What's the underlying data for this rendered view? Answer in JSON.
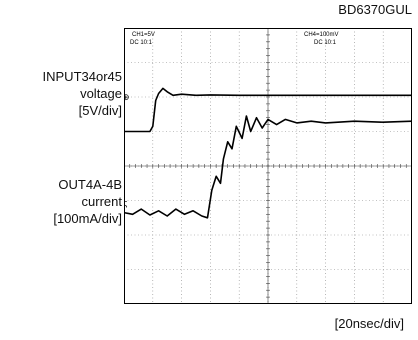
{
  "part_number": "BD6370GUL",
  "channel_labels": {
    "ch1": [
      "CH1=5V",
      "DC 10:1"
    ],
    "ch4": [
      "CH4=100mV",
      "DC 10:1"
    ]
  },
  "chart_data": {
    "type": "line",
    "x_divisions": 10,
    "y_divisions": 8,
    "series": [
      {
        "name": "INPUT34or45 voltage",
        "axis_label": [
          "INPUT34or45",
          "voltage",
          "[5V/div]"
        ],
        "y_scale": "5V/div",
        "points_div": [
          [
            0,
            1.0
          ],
          [
            0.9,
            1.0
          ],
          [
            1.0,
            1.15
          ],
          [
            1.1,
            1.9
          ],
          [
            1.2,
            2.1
          ],
          [
            1.35,
            2.25
          ],
          [
            1.5,
            2.15
          ],
          [
            1.7,
            2.05
          ],
          [
            2.0,
            2.08
          ],
          [
            2.5,
            2.05
          ],
          [
            3.0,
            2.06
          ],
          [
            4.0,
            2.05
          ],
          [
            5.0,
            2.05
          ],
          [
            6.0,
            2.05
          ],
          [
            7.0,
            2.05
          ],
          [
            8.0,
            2.05
          ],
          [
            9.0,
            2.05
          ],
          [
            10.0,
            2.05
          ]
        ]
      },
      {
        "name": "OUT4A-4B current",
        "axis_label": [
          "OUT4A-4B",
          "current",
          "[100mA/div]"
        ],
        "y_scale": "100mA/div",
        "points_div": [
          [
            0,
            -1.35
          ],
          [
            0.3,
            -1.4
          ],
          [
            0.6,
            -1.25
          ],
          [
            0.9,
            -1.42
          ],
          [
            1.2,
            -1.3
          ],
          [
            1.5,
            -1.45
          ],
          [
            1.8,
            -1.25
          ],
          [
            2.1,
            -1.4
          ],
          [
            2.4,
            -1.3
          ],
          [
            2.7,
            -1.45
          ],
          [
            2.9,
            -1.5
          ],
          [
            3.05,
            -0.7
          ],
          [
            3.2,
            -0.3
          ],
          [
            3.35,
            -0.5
          ],
          [
            3.45,
            0.2
          ],
          [
            3.6,
            0.7
          ],
          [
            3.75,
            0.5
          ],
          [
            3.9,
            1.15
          ],
          [
            4.1,
            0.8
          ],
          [
            4.25,
            1.45
          ],
          [
            4.4,
            1.0
          ],
          [
            4.6,
            1.4
          ],
          [
            4.8,
            1.1
          ],
          [
            5.0,
            1.35
          ],
          [
            5.3,
            1.2
          ],
          [
            5.6,
            1.35
          ],
          [
            6.0,
            1.25
          ],
          [
            6.5,
            1.3
          ],
          [
            7.0,
            1.25
          ],
          [
            8.0,
            1.3
          ],
          [
            9.0,
            1.27
          ],
          [
            10.0,
            1.3
          ]
        ]
      }
    ],
    "x_scale_label": "[20nsec/div]",
    "grid": true
  }
}
